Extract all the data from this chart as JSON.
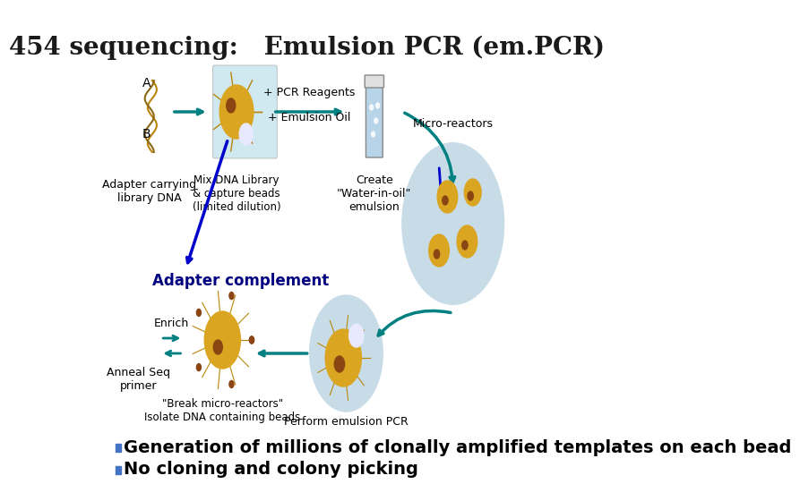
{
  "title": "454 sequencing:   Emulsion PCR (em.PCR)",
  "title_fontsize": 20,
  "background_color": "#ffffff",
  "bullet_color": "#4472c4",
  "bullet1": "Generation of millions of clonally amplified templates on each bead",
  "bullet2": "No cloning and colony picking",
  "bullet_fontsize": 14,
  "label_adapter": "Adapter carrying\nlibrary DNA",
  "label_A": "A",
  "label_B": "B",
  "label_mix": "Mix DNA Library\n& capture beads\n(limited dilution)",
  "label_pcr": "+ PCR Reagents",
  "label_oil": "+ Emulsion Oil",
  "label_create": "Create\n\"Water-in-oil\"\nemulsion",
  "label_micro": "Micro-reactors",
  "label_complement": "Adapter complement",
  "label_enrich": "Enrich",
  "label_anneal": "Anneal Seq\nprimer",
  "label_break": "\"Break micro-reactors\"\nIsolate DNA containing beads",
  "label_perform": "Perform emulsion PCR",
  "arrow_color": "#008080",
  "arrow_color2": "#0000cd",
  "complement_color": "#000080",
  "complement_fontsize": 16
}
